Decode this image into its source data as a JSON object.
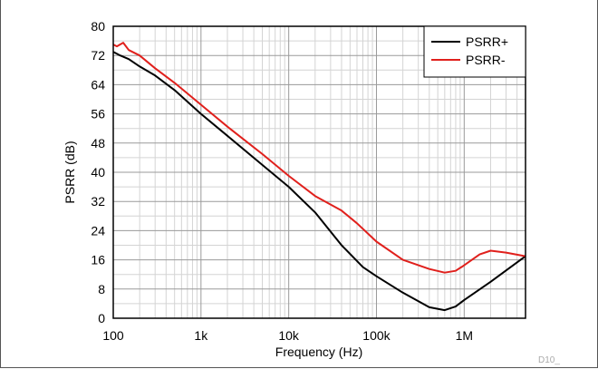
{
  "chart_data": {
    "type": "line",
    "xlabel": "Frequency (Hz)",
    "ylabel": "PSRR (dB)",
    "x_scale": "log",
    "xlim": [
      100,
      5000000
    ],
    "ylim": [
      0,
      80
    ],
    "y_ticks": [
      0,
      8,
      16,
      24,
      32,
      40,
      48,
      56,
      64,
      72,
      80
    ],
    "x_ticks": [
      {
        "value": 100,
        "label": "100"
      },
      {
        "value": 1000,
        "label": "1k"
      },
      {
        "value": 10000,
        "label": "10k"
      },
      {
        "value": 100000,
        "label": "100k"
      },
      {
        "value": 1000000,
        "label": "1M"
      }
    ],
    "grid": true,
    "legend_position": "top-right",
    "figure_id": "D10_",
    "series": [
      {
        "name": "PSRR+",
        "color": "#000000",
        "x": [
          100,
          120,
          150,
          200,
          300,
          500,
          1000,
          2000,
          5000,
          10000,
          20000,
          40000,
          70000,
          100000,
          200000,
          400000,
          600000,
          800000,
          1000000,
          2000000,
          5000000
        ],
        "y": [
          73,
          72,
          71,
          69,
          66.5,
          62.5,
          56,
          50,
          42,
          36,
          29,
          20,
          14,
          11.5,
          7,
          3,
          2.2,
          3.2,
          5,
          10,
          17
        ]
      },
      {
        "name": "PSRR-",
        "color": "#e0201c",
        "x": [
          100,
          110,
          130,
          150,
          200,
          300,
          500,
          1000,
          2000,
          5000,
          10000,
          20000,
          40000,
          60000,
          100000,
          200000,
          400000,
          600000,
          800000,
          1000000,
          1500000,
          2000000,
          3000000,
          5000000
        ],
        "y": [
          75,
          74.5,
          75.5,
          73.5,
          72,
          68.5,
          64.5,
          58.5,
          52.5,
          45,
          39,
          33.5,
          29.5,
          26,
          21,
          16,
          13.5,
          12.5,
          13,
          14.5,
          17.5,
          18.5,
          18,
          17
        ]
      }
    ]
  }
}
